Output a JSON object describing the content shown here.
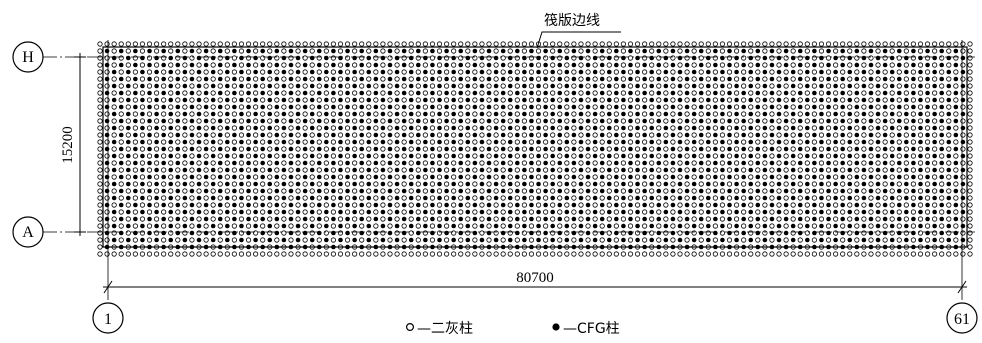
{
  "axes": {
    "H": "H",
    "A": "A",
    "one": "1",
    "sixtyone": "61"
  },
  "dimensions": {
    "vertical": "15200",
    "horizontal": "80700"
  },
  "annotation": {
    "raft_edge": "筏版边线"
  },
  "legend": {
    "lime_pile_symbol": "○",
    "lime_pile_label": "—二灰柱",
    "cfg_pile_symbol": "●",
    "cfg_pile_label": "—CFG柱"
  },
  "pile_pattern": {
    "hollow_pile": "二灰柱",
    "solid_pile": "CFG柱"
  }
}
